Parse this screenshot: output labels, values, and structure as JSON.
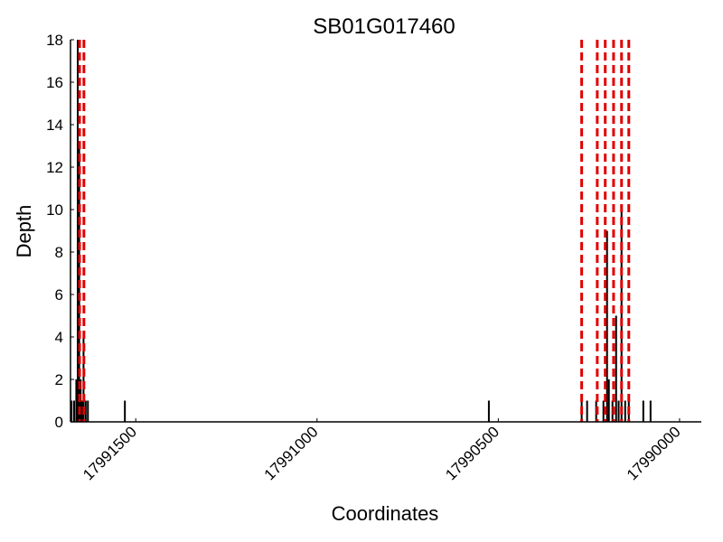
{
  "chart_data": {
    "type": "bar",
    "title": "SB01G017460",
    "xlabel": "Coordinates",
    "ylabel": "Depth",
    "x_reversed": true,
    "xlim": [
      17991680,
      17989940
    ],
    "ylim": [
      0,
      18
    ],
    "xticks": [
      17991500,
      17991000,
      17990500,
      17990000
    ],
    "yticks": [
      0,
      2,
      4,
      6,
      8,
      10,
      12,
      14,
      16,
      18
    ],
    "grid": false,
    "legend": "none",
    "bar_color": "#000000",
    "marker_color": "#e00000",
    "depth_bars": [
      {
        "x": 17991677,
        "depth": 1
      },
      {
        "x": 17991670,
        "depth": 1
      },
      {
        "x": 17991664,
        "depth": 2
      },
      {
        "x": 17991660,
        "depth": 18
      },
      {
        "x": 17991656,
        "depth": 13
      },
      {
        "x": 17991652,
        "depth": 2
      },
      {
        "x": 17991648,
        "depth": 1
      },
      {
        "x": 17991644,
        "depth": 4
      },
      {
        "x": 17991638,
        "depth": 1
      },
      {
        "x": 17991632,
        "depth": 1
      },
      {
        "x": 17991530,
        "depth": 1
      },
      {
        "x": 17990526,
        "depth": 1
      },
      {
        "x": 17990270,
        "depth": 1
      },
      {
        "x": 17990255,
        "depth": 1
      },
      {
        "x": 17990230,
        "depth": 1
      },
      {
        "x": 17990210,
        "depth": 1
      },
      {
        "x": 17990200,
        "depth": 9
      },
      {
        "x": 17990195,
        "depth": 2
      },
      {
        "x": 17990185,
        "depth": 1
      },
      {
        "x": 17990175,
        "depth": 5
      },
      {
        "x": 17990168,
        "depth": 1
      },
      {
        "x": 17990160,
        "depth": 10
      },
      {
        "x": 17990150,
        "depth": 1
      },
      {
        "x": 17990140,
        "depth": 1
      },
      {
        "x": 17990100,
        "depth": 1
      },
      {
        "x": 17990080,
        "depth": 1
      }
    ],
    "exon_boundaries": [
      17991655,
      17991643,
      17990270,
      17990227,
      17990205,
      17990182,
      17990160,
      17990140
    ]
  }
}
